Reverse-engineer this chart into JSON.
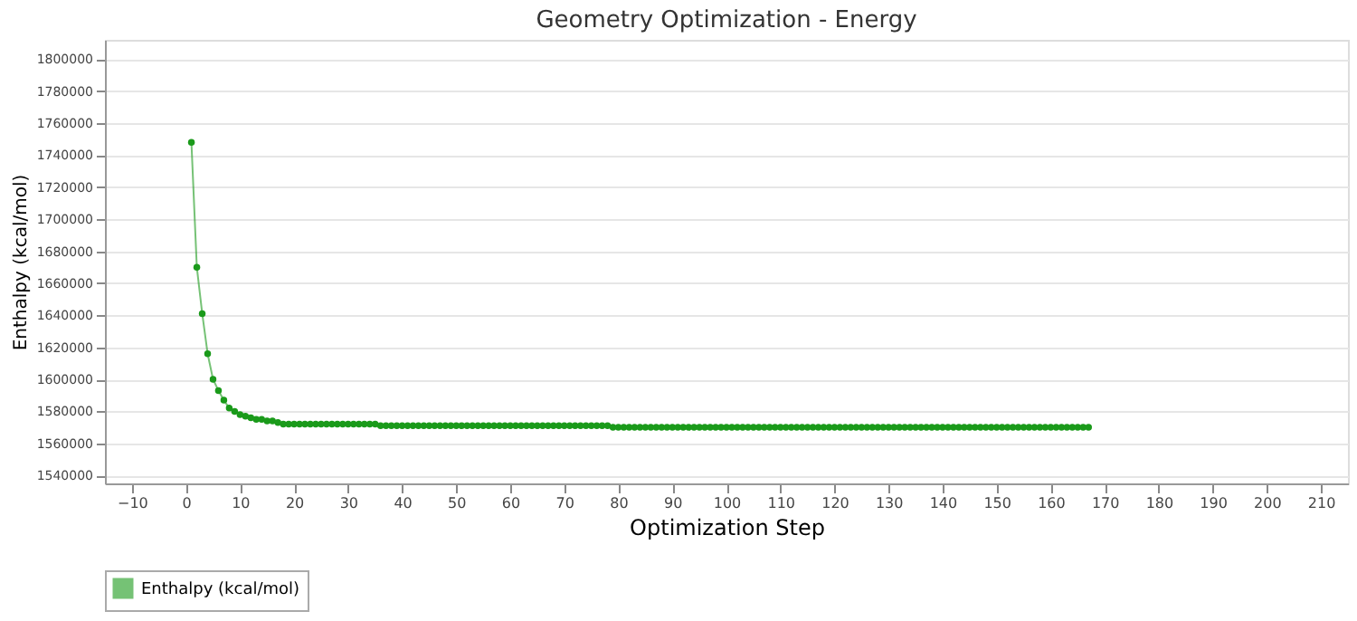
{
  "chart_data": {
    "type": "line",
    "title": "Geometry Optimization - Energy",
    "xlabel": "Optimization Step",
    "ylabel": "Enthalpy (kcal/mol)",
    "x": [
      1,
      2,
      3,
      4,
      5,
      6,
      7,
      8,
      9,
      10,
      11,
      12,
      13,
      14,
      15,
      16,
      17,
      18,
      19,
      20,
      21,
      22,
      23,
      24,
      25,
      26,
      27,
      28,
      29,
      30,
      31,
      32,
      33,
      34,
      35,
      36,
      37,
      38,
      39,
      40,
      41,
      42,
      43,
      44,
      45,
      46,
      47,
      48,
      49,
      50,
      51,
      52,
      53,
      54,
      55,
      56,
      57,
      58,
      59,
      60,
      61,
      62,
      63,
      64,
      65,
      66,
      67,
      68,
      69,
      70,
      71,
      72,
      73,
      74,
      75,
      76,
      77,
      78,
      79,
      80,
      81,
      82,
      83,
      84,
      85,
      86,
      87,
      88,
      89,
      90,
      91,
      92,
      93,
      94,
      95,
      96,
      97,
      98,
      99,
      100,
      101,
      102,
      103,
      104,
      105,
      106,
      107,
      108,
      109,
      110,
      111,
      112,
      113,
      114,
      115,
      116,
      117,
      118,
      119,
      120,
      121,
      122,
      123,
      124,
      125,
      126,
      127,
      128,
      129,
      130,
      131,
      132,
      133,
      134,
      135,
      136,
      137,
      138,
      139,
      140,
      141,
      142,
      143,
      144,
      145,
      146,
      147,
      148,
      149,
      150,
      151,
      152,
      153,
      154,
      155,
      156,
      157,
      158,
      159,
      160,
      161,
      162,
      163,
      164,
      165,
      166,
      167
    ],
    "series": [
      {
        "name": "Enthalpy (kcal/mol)",
        "color": "#1a9a1a",
        "values": [
          1748000,
          1670000,
          1641000,
          1616000,
          1600000,
          1593000,
          1587000,
          1582000,
          1580000,
          1578000,
          1577000,
          1576000,
          1575000,
          1575000,
          1574000,
          1574000,
          1573000,
          1572000,
          1572000,
          1572000,
          1572000,
          1572000,
          1572000,
          1572000,
          1572000,
          1572000,
          1572000,
          1572000,
          1572000,
          1572000,
          1572000,
          1572000,
          1572000,
          1572000,
          1572000,
          1571000,
          1571000,
          1571000,
          1571000,
          1571000,
          1571000,
          1571000,
          1571000,
          1571000,
          1571000,
          1571000,
          1571000,
          1571000,
          1571000,
          1571000,
          1571000,
          1571000,
          1571000,
          1571000,
          1571000,
          1571000,
          1571000,
          1571000,
          1571000,
          1571000,
          1571000,
          1571000,
          1571000,
          1571000,
          1571000,
          1571000,
          1571000,
          1571000,
          1571000,
          1571000,
          1571000,
          1571000,
          1571000,
          1571000,
          1571000,
          1571000,
          1571000,
          1571000,
          1570000,
          1570000,
          1570000,
          1570000,
          1570000,
          1570000,
          1570000,
          1570000,
          1570000,
          1570000,
          1570000,
          1570000,
          1570000,
          1570000,
          1570000,
          1570000,
          1570000,
          1570000,
          1570000,
          1570000,
          1570000,
          1570000,
          1570000,
          1570000,
          1570000,
          1570000,
          1570000,
          1570000,
          1570000,
          1570000,
          1570000,
          1570000,
          1570000,
          1570000,
          1570000,
          1570000,
          1570000,
          1570000,
          1570000,
          1570000,
          1570000,
          1570000,
          1570000,
          1570000,
          1570000,
          1570000,
          1570000,
          1570000,
          1570000,
          1570000,
          1570000,
          1570000,
          1570000,
          1570000,
          1570000,
          1570000,
          1570000,
          1570000,
          1570000,
          1570000,
          1570000,
          1570000,
          1570000,
          1570000,
          1570000,
          1570000,
          1570000,
          1570000,
          1570000,
          1570000,
          1570000,
          1570000,
          1570000,
          1570000,
          1570000,
          1570000,
          1570000,
          1570000,
          1570000,
          1570000,
          1570000,
          1570000,
          1570000,
          1570000,
          1570000,
          1570000,
          1570000,
          1570000,
          1570000
        ]
      }
    ],
    "xlim": [
      -15,
      215
    ],
    "xticks": [
      -10,
      0,
      10,
      20,
      30,
      40,
      50,
      60,
      70,
      80,
      90,
      100,
      110,
      120,
      130,
      140,
      150,
      160,
      170,
      180,
      190,
      200,
      210
    ],
    "ylim": [
      1535000,
      1812000
    ],
    "yticks": [
      1540000,
      1560000,
      1580000,
      1600000,
      1620000,
      1640000,
      1660000,
      1680000,
      1700000,
      1720000,
      1740000,
      1760000,
      1780000,
      1800000
    ],
    "grid": "y",
    "legend": "bottom",
    "marker": "circle",
    "line_style": "solid"
  }
}
